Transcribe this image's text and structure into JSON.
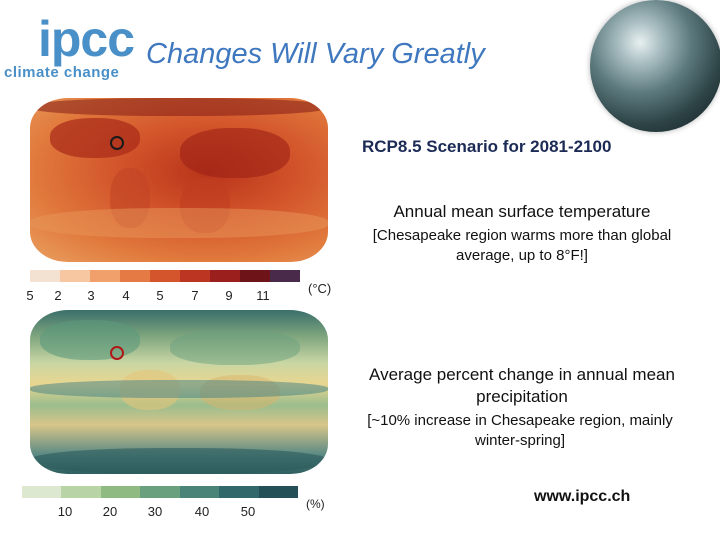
{
  "logo": {
    "word": "ipcc",
    "subtitle": "climate change"
  },
  "title": "Changes Will Vary Greatly",
  "scenario": "RCP8.5 Scenario for 2081-2100",
  "temperature": {
    "heading": "Annual mean surface temperature",
    "note": "[Chesapeake region warms more than global average, up to 8°F!]",
    "ticks": [
      "5",
      "2",
      "3",
      "4",
      "5",
      "7",
      "9",
      "11"
    ],
    "unit": "(°C)",
    "colors": [
      "#f3e2d2",
      "#f6c7a0",
      "#f1a06b",
      "#e57a45",
      "#d4542c",
      "#bb3522",
      "#9b1f1c",
      "#6e1418",
      "#4a2a4a"
    ]
  },
  "precipitation": {
    "heading": "Average percent change in annual mean precipitation",
    "note": "[~10% increase in Chesapeake region, mainly winter-spring]",
    "ticks": [
      "10",
      "20",
      "30",
      "40",
      "50"
    ],
    "unit": "(%)",
    "colors": [
      "#dce8cf",
      "#b8d3a6",
      "#8fbb82",
      "#6aa07d",
      "#4a8478",
      "#33686a",
      "#254f57"
    ]
  },
  "url": "www.ipcc.ch"
}
